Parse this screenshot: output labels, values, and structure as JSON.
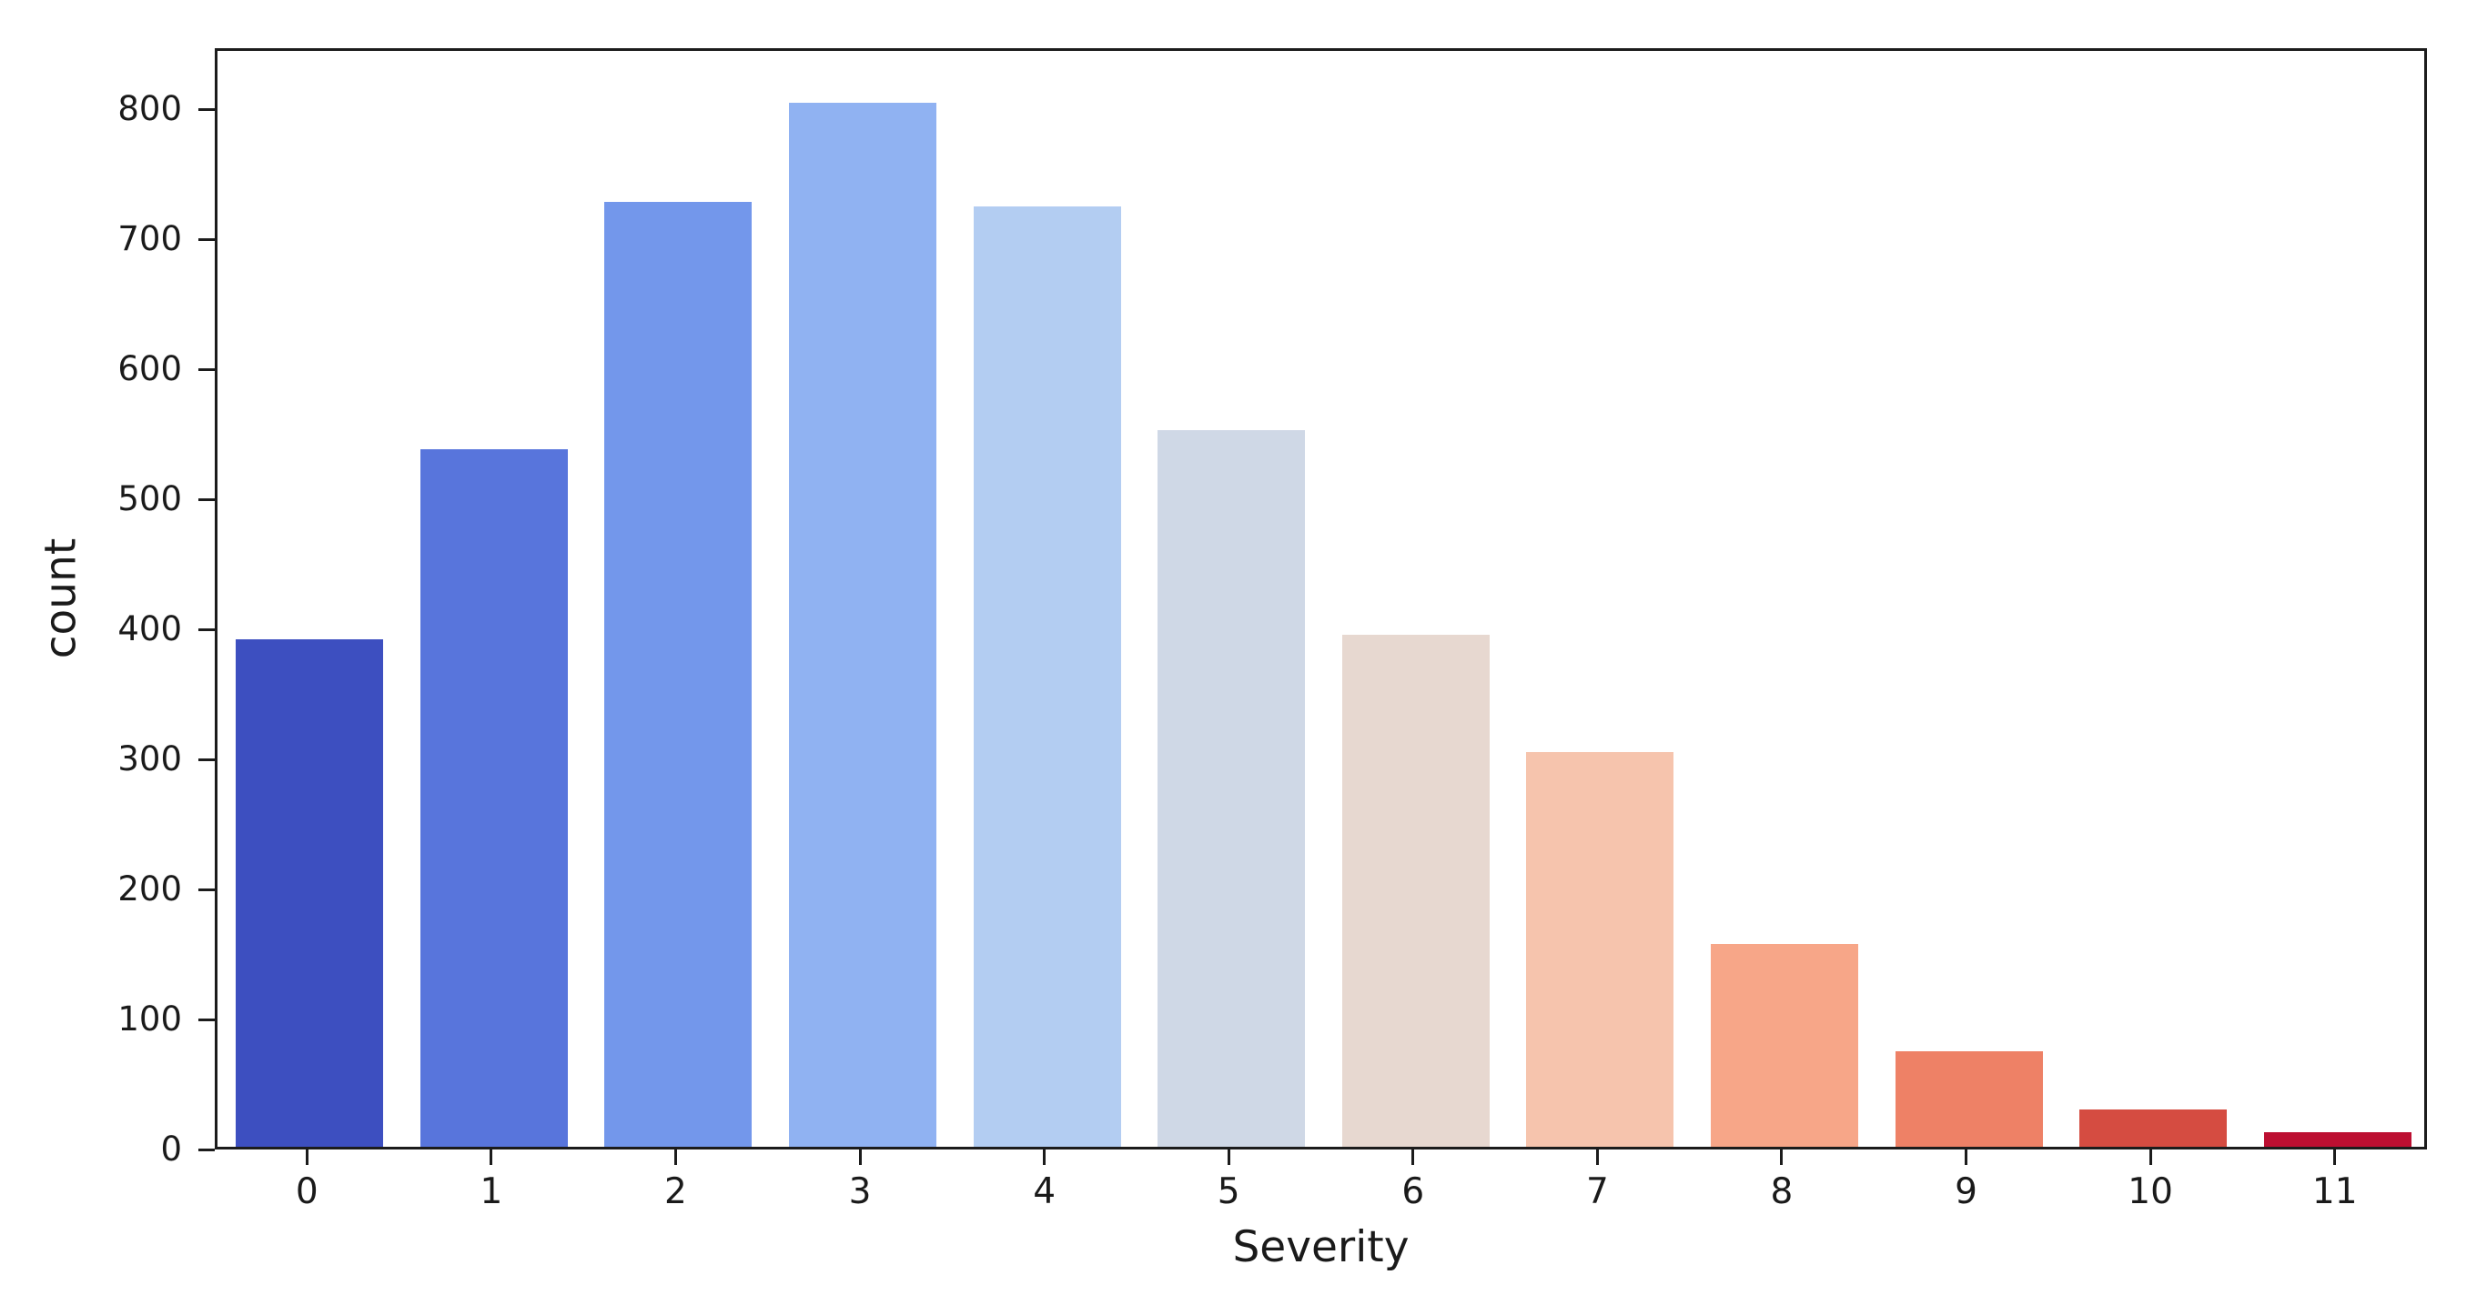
{
  "chart_data": {
    "type": "bar",
    "title": "",
    "xlabel": "Severity",
    "ylabel": "count",
    "categories": [
      "0",
      "1",
      "2",
      "3",
      "4",
      "5",
      "6",
      "7",
      "8",
      "9",
      "10",
      "11"
    ],
    "values": [
      392,
      539,
      730,
      807,
      727,
      554,
      396,
      305,
      157,
      74,
      29,
      11
    ],
    "bar_colors": [
      "#3d4fc0",
      "#5875dc",
      "#7397eb",
      "#90b2f2",
      "#b3cdf2",
      "#cfd8e6",
      "#e7d8d0",
      "#f6c4ad",
      "#f7a688",
      "#ee8166",
      "#d54c41",
      "#bc0f31"
    ],
    "ylim": [
      0,
      847
    ],
    "yticks": [
      0,
      100,
      200,
      300,
      400,
      500,
      600,
      700,
      800
    ],
    "grid": false,
    "legend": null,
    "frame": "full-box",
    "spine_color": "#1c1c1c",
    "text_color": "#1a1a1a",
    "background_color": "#ffffff"
  }
}
